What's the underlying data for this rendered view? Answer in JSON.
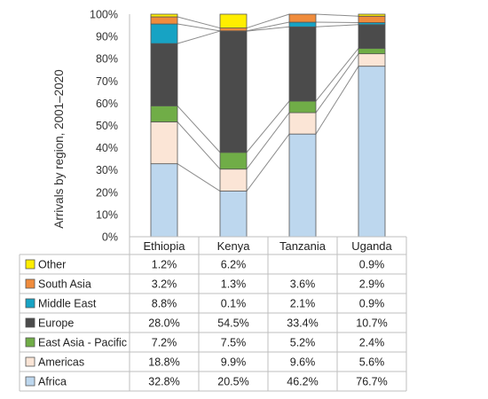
{
  "chart_data": {
    "type": "bar",
    "stacked": true,
    "categories": [
      "Ethiopia",
      "Kenya",
      "Tanzania",
      "Uganda"
    ],
    "ylabel": "Arrivals by region, 2001–2020",
    "ylim": [
      0,
      100
    ],
    "yticks": [
      "0%",
      "10%",
      "20%",
      "30%",
      "40%",
      "50%",
      "60%",
      "70%",
      "80%",
      "90%",
      "100%"
    ],
    "legend_position": "left, as data table below the chart",
    "series_lines": true,
    "series": [
      {
        "name": "Africa",
        "color": "#bdd7ee",
        "values": [
          32.8,
          20.5,
          46.2,
          76.7
        ],
        "labels": [
          "32.8%",
          "20.5%",
          "46.2%",
          "76.7%"
        ]
      },
      {
        "name": "Americas",
        "color": "#fbe5d6",
        "values": [
          18.8,
          9.9,
          9.6,
          5.6
        ],
        "labels": [
          "18.8%",
          "9.9%",
          "9.6%",
          "5.6%"
        ]
      },
      {
        "name": "East Asia - Pacific",
        "color": "#70ad47",
        "values": [
          7.2,
          7.5,
          5.2,
          2.4
        ],
        "labels": [
          "7.2%",
          "7.5%",
          "5.2%",
          "2.4%"
        ]
      },
      {
        "name": "Europe",
        "color": "#4b4b4b",
        "values": [
          28.0,
          54.5,
          33.4,
          10.7
        ],
        "labels": [
          "28.0%",
          "54.5%",
          "33.4%",
          "10.7%"
        ]
      },
      {
        "name": "Middle East",
        "color": "#17a3c4",
        "values": [
          8.8,
          0.1,
          2.1,
          0.9
        ],
        "labels": [
          "8.8%",
          "0.1%",
          "2.1%",
          "0.9%"
        ]
      },
      {
        "name": "South Asia",
        "color": "#f08c3c",
        "values": [
          3.2,
          1.3,
          3.6,
          2.9
        ],
        "labels": [
          "3.2%",
          "1.3%",
          "3.6%",
          "2.9%"
        ]
      },
      {
        "name": "Other",
        "color": "#ffee00",
        "values": [
          1.2,
          6.2,
          0,
          0.9
        ],
        "labels": [
          "1.2%",
          "6.2%",
          "",
          "0.9%"
        ]
      }
    ]
  }
}
